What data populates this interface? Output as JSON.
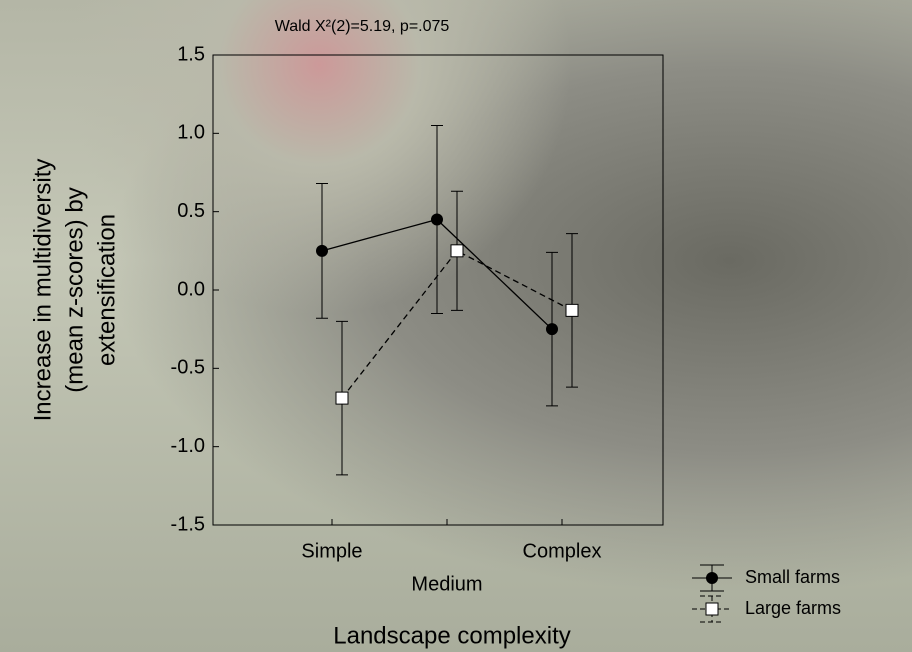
{
  "chart_data": {
    "type": "errorbar-line",
    "title": "Wald  X²(2)=5.19, p=.075",
    "ylabel": [
      "Increase in multidiversity",
      "(mean z-scores) by",
      "extensification"
    ],
    "xlabel": "Landscape complexity",
    "categories": [
      "Simple",
      "Medium",
      "Complex"
    ],
    "series": [
      {
        "name": "Small farms",
        "color": "#000000",
        "marker": "circle",
        "line_style": "solid",
        "values": [
          0.25,
          0.45,
          -0.25
        ],
        "errors": [
          0.43,
          0.6,
          0.49
        ]
      },
      {
        "name": "Large farms",
        "color": "#000000",
        "marker": "square",
        "line_style": "dashed",
        "values": [
          -0.69,
          0.25,
          -0.13
        ],
        "errors": [
          0.49,
          0.38,
          0.49
        ]
      }
    ],
    "ylim": [
      -1.5,
      1.5
    ],
    "yticks": [
      -1.5,
      {
        "value": -1,
        "label": "-1.0"
      },
      -0.5,
      {
        "value": 0,
        "label": "0.0"
      },
      0.5,
      {
        "value": 1,
        "label": "1.0"
      },
      1.5
    ],
    "legend": "bottom-right"
  }
}
